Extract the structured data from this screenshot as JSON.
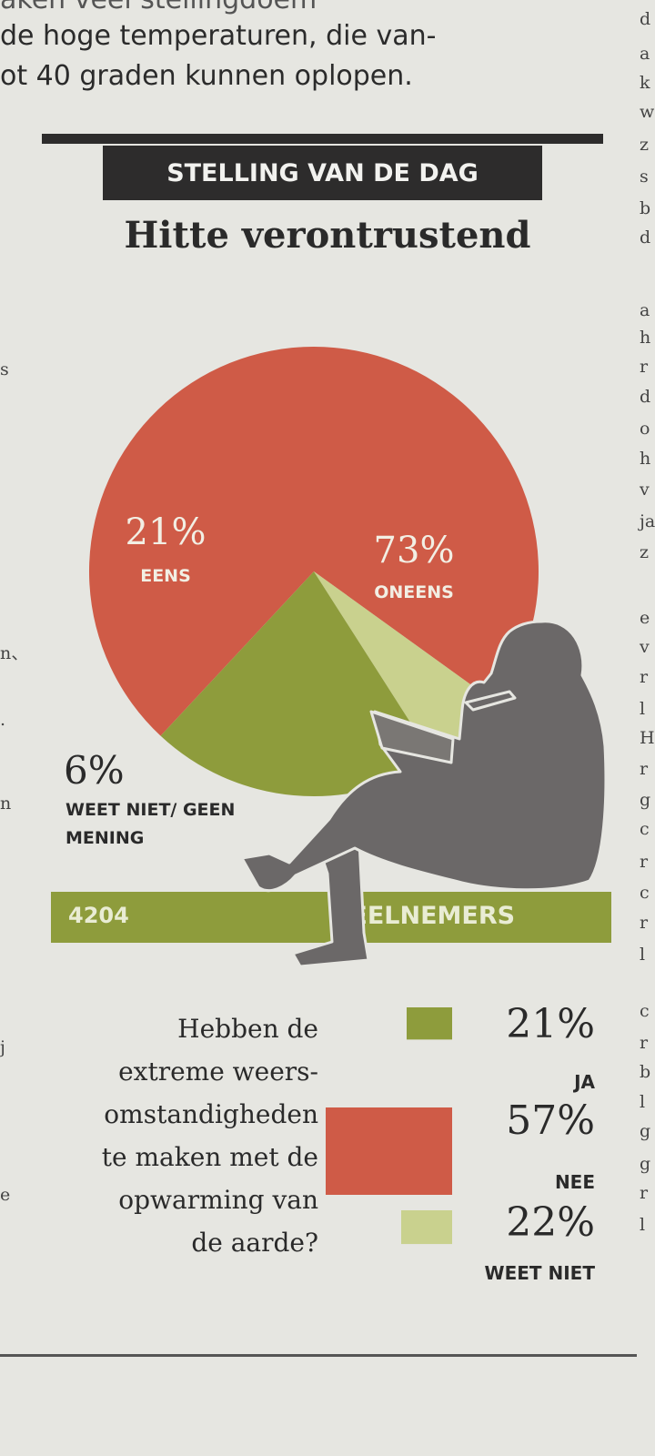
{
  "intro_text": {
    "line0": "aken veel stellingdoem",
    "line1": "de hoge temperaturen, die van-",
    "line2": "ot 40 graden kunnen oplopen."
  },
  "header": {
    "kicker": "STELLING VAN DE DAG",
    "headline": "Hitte verontrustend"
  },
  "right_column_letters": [
    "d",
    "a",
    "k",
    "w",
    "z",
    "s",
    "b",
    "d",
    "a",
    "h",
    "r",
    "d",
    "o",
    "h",
    "v",
    "ja",
    "z",
    "e",
    "v",
    "r",
    "l",
    "H",
    "r",
    "g",
    "c",
    "r",
    "c",
    "r",
    "l",
    "c",
    "r",
    "b",
    "l",
    "g",
    "g",
    "r",
    "l"
  ],
  "left_column_fragments": [
    "s",
    "n、",
    ".",
    "n",
    "j",
    "e"
  ],
  "colors": {
    "oneens": "#cf5b47",
    "eens": "#8e9c3c",
    "weet_niet": "#c9d18e",
    "ink": "#2d2c2c",
    "silhouette": "#6b6868"
  },
  "chart_data": [
    {
      "type": "pie",
      "title": "Hitte verontrustend",
      "slices": [
        {
          "label": "ONEENS",
          "pct_text": "73%",
          "value": 73
        },
        {
          "label": "WEET NIET/ GEEN MENING",
          "pct_text": "6%",
          "value": 6
        },
        {
          "label": "EENS",
          "pct_text": "21%",
          "value": 21
        }
      ],
      "participants": {
        "count": "4204",
        "label": "DEELNEMERS"
      }
    },
    {
      "type": "bar",
      "question": "Hebben de extreme weersomstandigheden te maken met de opwarming van de aarde?",
      "question_lines": [
        "Hebben de",
        "extreme weers-",
        "omstandigheden",
        "te maken met de",
        "opwarming van",
        "de aarde?"
      ],
      "items": [
        {
          "label": "JA",
          "pct_text": "21%",
          "value": 21
        },
        {
          "label": "NEE",
          "pct_text": "57%",
          "value": 57
        },
        {
          "label": "WEET NIET",
          "pct_text": "22%",
          "value": 22
        }
      ]
    }
  ]
}
